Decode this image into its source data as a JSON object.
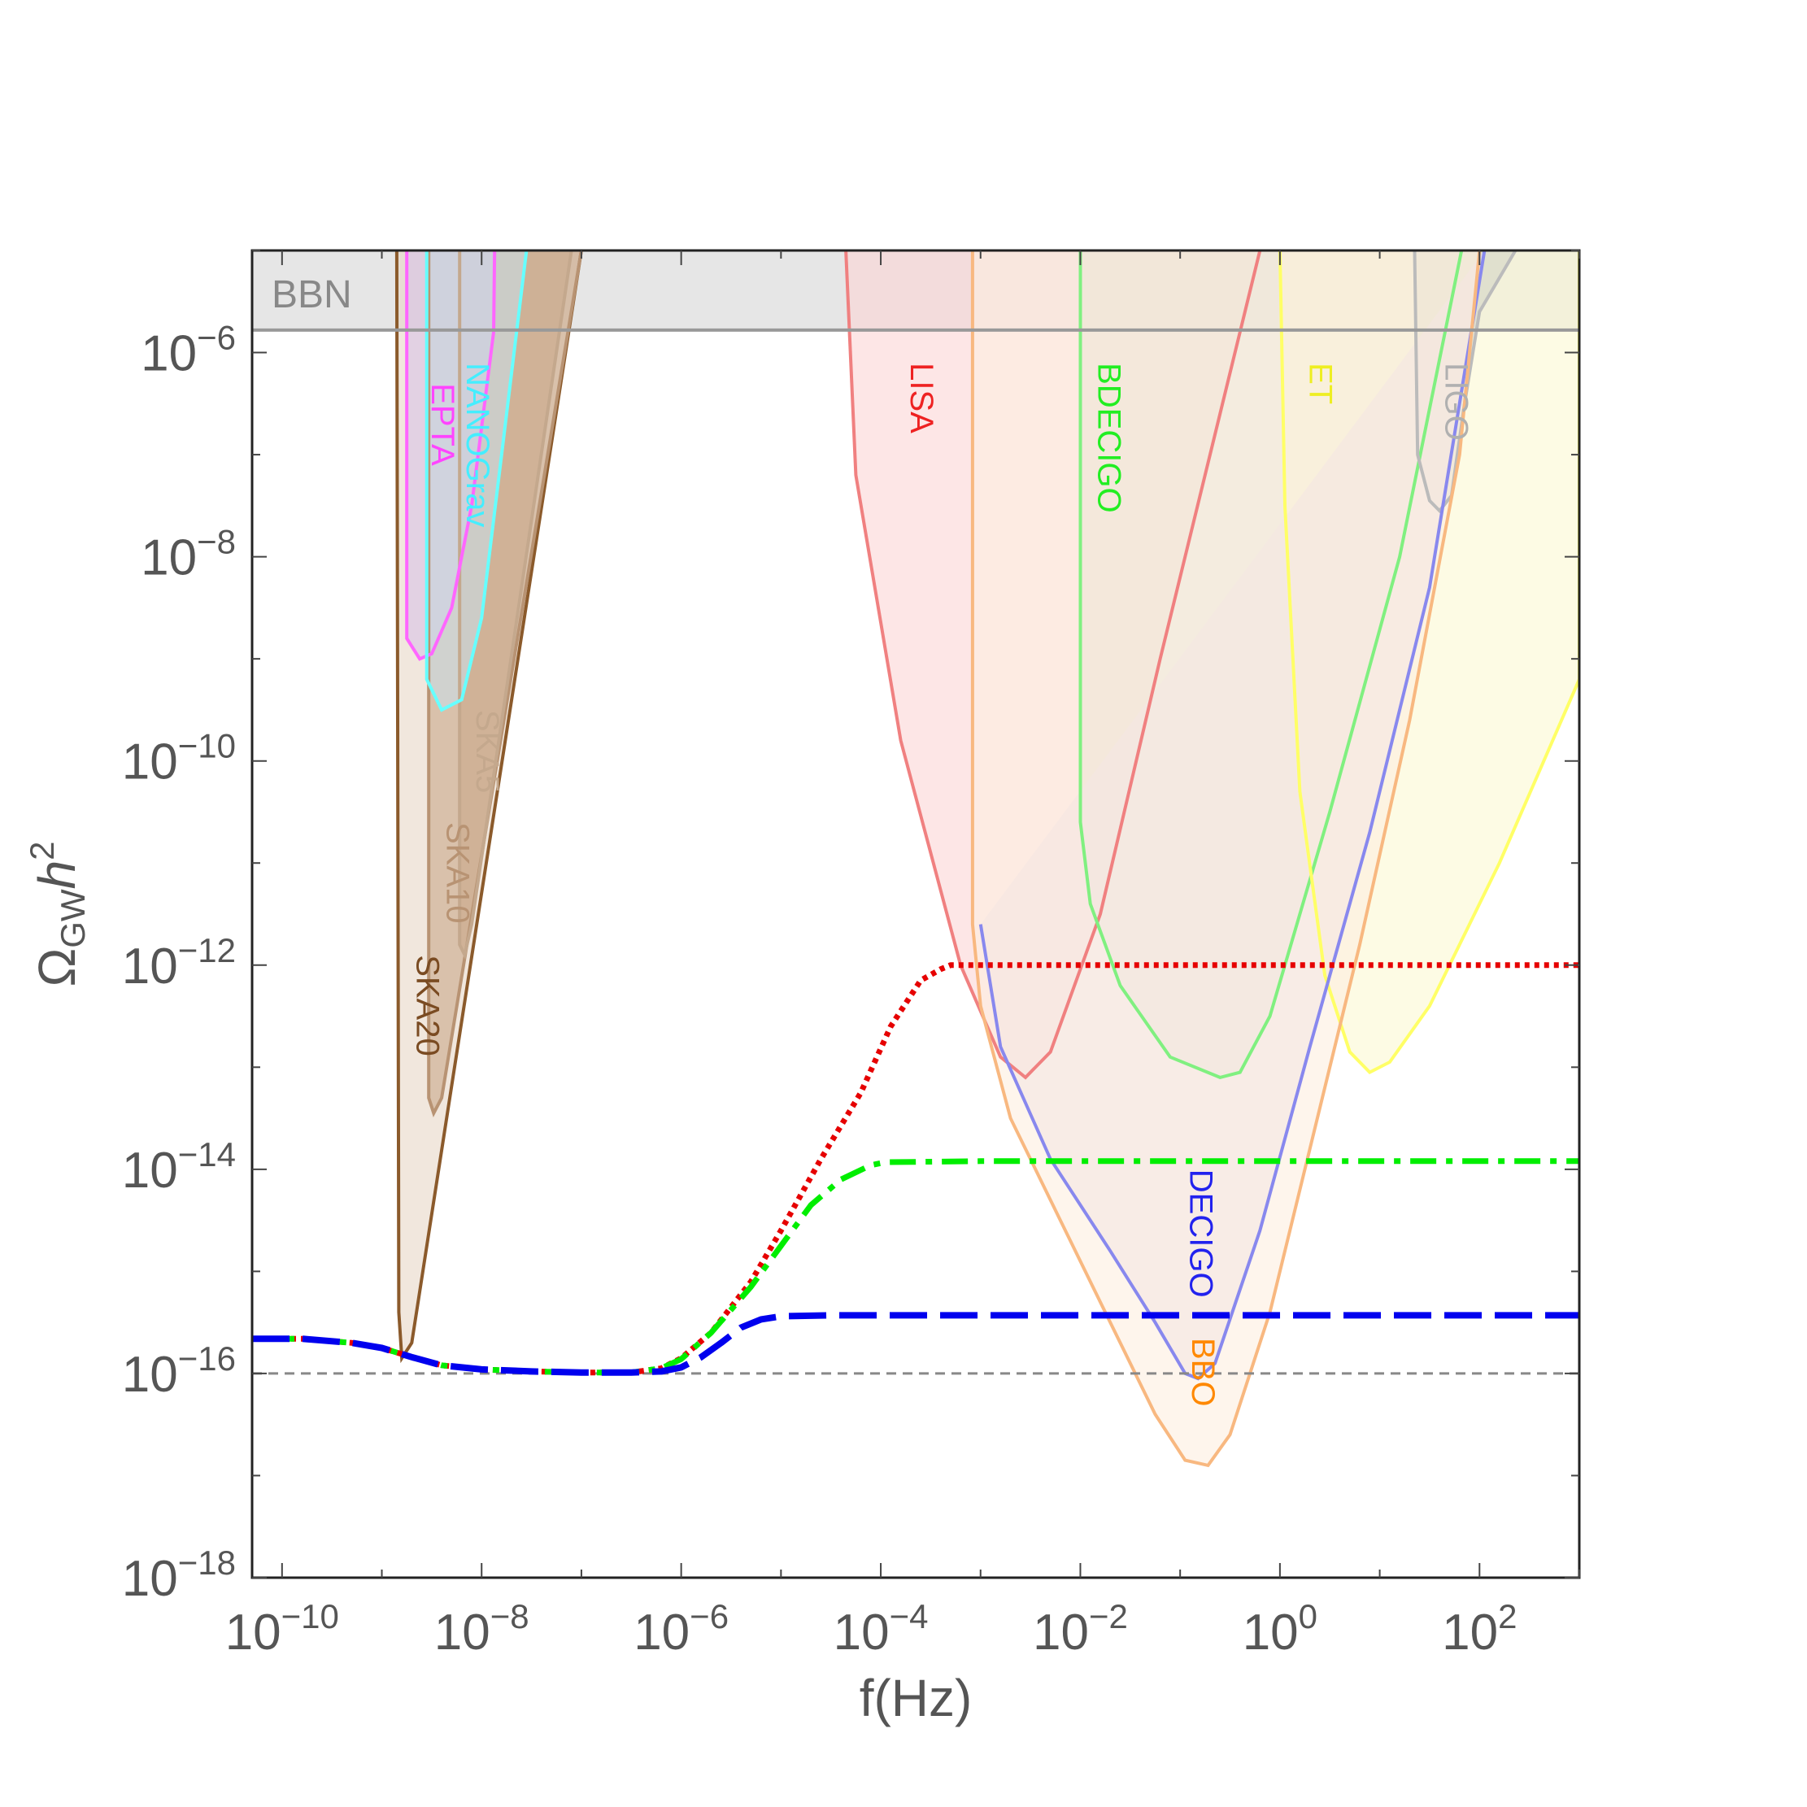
{
  "chart_data": {
    "type": "line",
    "title": "",
    "xlabel": "f(Hz)",
    "ylabel_main": "Ω",
    "ylabel_sub": "GW",
    "ylabel_h": "h",
    "ylabel_exp": "2",
    "x_scale": "log",
    "y_scale": "log",
    "xlim_log10": [
      -10.3,
      3.0
    ],
    "ylim_log10": [
      -18.0,
      -5.0
    ],
    "grid": false,
    "legend": "none",
    "x_ticks": [
      {
        "exp": -10,
        "base": "10",
        "sup": "−10"
      },
      {
        "exp": -8,
        "base": "10",
        "sup": "−8"
      },
      {
        "exp": -6,
        "base": "10",
        "sup": "−6"
      },
      {
        "exp": -4,
        "base": "10",
        "sup": "−4"
      },
      {
        "exp": -2,
        "base": "10",
        "sup": "−2"
      },
      {
        "exp": 0,
        "base": "10",
        "sup": "0"
      },
      {
        "exp": 2,
        "base": "10",
        "sup": "2"
      }
    ],
    "y_ticks": [
      {
        "exp": -18,
        "base": "10",
        "sup": "−18"
      },
      {
        "exp": -16,
        "base": "10",
        "sup": "−16"
      },
      {
        "exp": -14,
        "base": "10",
        "sup": "−14"
      },
      {
        "exp": -12,
        "base": "10",
        "sup": "−12"
      },
      {
        "exp": -10,
        "base": "10",
        "sup": "−10"
      },
      {
        "exp": -8,
        "base": "10",
        "sup": "−8"
      },
      {
        "exp": -6,
        "base": "10",
        "sup": "−6"
      }
    ],
    "bbn": {
      "label": "BBN",
      "y_log10": -5.78,
      "fill": "#e6e6e6",
      "line": "#999999"
    },
    "regions": [
      {
        "label": "SKA20",
        "color": "#8b5a2b",
        "fill": "#e8d7c6",
        "label_color": "#7a4b22",
        "label_pos": [
          -8.65,
          -11.9
        ],
        "poly": [
          [
            -8.85,
            -5.0
          ],
          [
            -8.83,
            -15.4
          ],
          [
            -8.8,
            -15.85
          ],
          [
            -8.7,
            -15.7
          ],
          [
            -7.0,
            -5.0
          ]
        ]
      },
      {
        "label": "SKA10",
        "color": "#b89373",
        "fill": "#c9a88a",
        "label_color": "#b89373",
        "label_pos": [
          -8.35,
          -10.6
        ],
        "poly": [
          [
            -8.53,
            -5.0
          ],
          [
            -8.53,
            -13.3
          ],
          [
            -8.48,
            -13.45
          ],
          [
            -8.4,
            -13.3
          ],
          [
            -7.0,
            -5.0
          ]
        ]
      },
      {
        "label": "SKA5",
        "color": "#c4a88d",
        "fill": "#c9a88a",
        "label_color": "#c4a88d",
        "label_pos": [
          -8.05,
          -9.5
        ],
        "poly": [
          [
            -8.22,
            -5.0
          ],
          [
            -8.22,
            -11.8
          ],
          [
            -8.17,
            -11.9
          ],
          [
            -8.1,
            -11.6
          ],
          [
            -7.1,
            -5.0
          ]
        ]
      },
      {
        "label": "EPTA",
        "color": "#ff66ff",
        "fill": "#d9c3e8",
        "label_color": "#ff44ff",
        "label_pos": [
          -8.5,
          -6.3
        ],
        "poly": [
          [
            -8.75,
            -5.0
          ],
          [
            -8.75,
            -8.8
          ],
          [
            -8.62,
            -9.0
          ],
          [
            -8.5,
            -8.95
          ],
          [
            -8.3,
            -8.5
          ],
          [
            -8.1,
            -7.5
          ],
          [
            -7.88,
            -5.8
          ],
          [
            -7.87,
            -5.0
          ]
        ]
      },
      {
        "label": "NANOGrav",
        "color": "#66ffff",
        "fill": "#c9dde8",
        "label_color": "#44eeff",
        "label_pos": [
          -8.15,
          -6.1
        ],
        "poly": [
          [
            -8.55,
            -5.0
          ],
          [
            -8.55,
            -9.2
          ],
          [
            -8.4,
            -9.5
          ],
          [
            -8.2,
            -9.4
          ],
          [
            -8.0,
            -8.6
          ],
          [
            -7.8,
            -7.0
          ],
          [
            -7.55,
            -5.0
          ]
        ]
      },
      {
        "label": "LISA",
        "color": "#f08080",
        "fill": "#fbd5d5",
        "label_color": "#ee2222",
        "label_pos": [
          -3.7,
          -6.1
        ],
        "poly": [
          [
            -4.35,
            -5.0
          ],
          [
            -4.25,
            -7.2
          ],
          [
            -3.8,
            -9.8
          ],
          [
            -3.2,
            -12.0
          ],
          [
            -2.8,
            -12.9
          ],
          [
            -2.55,
            -13.1
          ],
          [
            -2.3,
            -12.85
          ],
          [
            -1.8,
            -11.5
          ],
          [
            -1.2,
            -9.0
          ],
          [
            -0.2,
            -5.0
          ]
        ]
      },
      {
        "label": "BDECIGO",
        "color": "#80f080",
        "fill": "#d5dac8",
        "label_color": "#22ee22",
        "label_pos": [
          -1.82,
          -6.1
        ],
        "poly": [
          [
            -2.0,
            -5.0
          ],
          [
            -2.0,
            -10.6
          ],
          [
            -1.9,
            -11.4
          ],
          [
            -1.6,
            -12.2
          ],
          [
            -1.1,
            -12.9
          ],
          [
            -0.6,
            -13.1
          ],
          [
            -0.4,
            -13.05
          ],
          [
            -0.1,
            -12.5
          ],
          [
            0.5,
            -10.5
          ],
          [
            1.2,
            -8.0
          ],
          [
            1.82,
            -5.0
          ]
        ]
      },
      {
        "label": "ET",
        "color": "#ffff66",
        "fill": "#fbf8d2",
        "label_color": "#eeee22",
        "label_pos": [
          0.3,
          -6.1
        ],
        "poly": [
          [
            0.0,
            -5.0
          ],
          [
            0.05,
            -7.5
          ],
          [
            0.2,
            -10.3
          ],
          [
            0.45,
            -12.1
          ],
          [
            0.7,
            -12.85
          ],
          [
            0.9,
            -13.05
          ],
          [
            1.1,
            -12.95
          ],
          [
            1.5,
            -12.4
          ],
          [
            2.2,
            -11.0
          ],
          [
            3.0,
            -9.2
          ],
          [
            3.0,
            -5.0
          ]
        ]
      },
      {
        "label": "LIGO",
        "color": "#bbbbbb",
        "fill": "#d4d6c6",
        "label_color": "#b0b0b0",
        "label_pos": [
          1.66,
          -6.1
        ],
        "poly": [
          [
            1.35,
            -5.0
          ],
          [
            1.38,
            -7.0
          ],
          [
            1.5,
            -7.45
          ],
          [
            1.6,
            -7.55
          ],
          [
            1.72,
            -7.4
          ],
          [
            1.85,
            -6.5
          ],
          [
            2.0,
            -5.6
          ],
          [
            2.36,
            -5.0
          ]
        ]
      },
      {
        "label": "DECIGO",
        "color": "#8888ee",
        "fill": "#e8dbe8",
        "label_color": "#2222ee",
        "label_pos": [
          -0.9,
          -14.0
        ],
        "poly": [
          [
            -3.0,
            -11.6
          ],
          [
            -2.8,
            -12.8
          ],
          [
            -2.3,
            -13.9
          ],
          [
            -1.7,
            -14.8
          ],
          [
            -1.25,
            -15.5
          ],
          [
            -0.95,
            -16.0
          ],
          [
            -0.82,
            -16.05
          ],
          [
            -0.65,
            -15.9
          ],
          [
            -0.2,
            -14.6
          ],
          [
            0.3,
            -12.8
          ],
          [
            0.9,
            -10.7
          ],
          [
            1.5,
            -8.3
          ],
          [
            2.05,
            -5.0
          ]
        ]
      },
      {
        "label": "BBO",
        "color": "#f8b880",
        "fill": "#fdeee0",
        "label_color": "#ff8800",
        "label_pos": [
          -0.88,
          -15.65
        ],
        "poly": [
          [
            -3.08,
            -5.0
          ],
          [
            -3.08,
            -11.6
          ],
          [
            -3.0,
            -12.4
          ],
          [
            -2.7,
            -13.5
          ],
          [
            -2.2,
            -14.5
          ],
          [
            -1.7,
            -15.5
          ],
          [
            -1.25,
            -16.4
          ],
          [
            -0.95,
            -16.85
          ],
          [
            -0.72,
            -16.9
          ],
          [
            -0.5,
            -16.6
          ],
          [
            -0.1,
            -15.4
          ],
          [
            0.3,
            -13.8
          ],
          [
            0.8,
            -11.8
          ],
          [
            1.3,
            -9.6
          ],
          [
            1.8,
            -7.0
          ],
          [
            2.0,
            -5.0
          ]
        ]
      }
    ],
    "reference_line": {
      "y_log10": -16.0,
      "color": "#888888"
    },
    "series": [
      {
        "style": "dotted",
        "color": "#e60000",
        "points": [
          [
            -10.3,
            -15.66
          ],
          [
            -9.8,
            -15.66
          ],
          [
            -9.3,
            -15.7
          ],
          [
            -9.0,
            -15.75
          ],
          [
            -8.7,
            -15.84
          ],
          [
            -8.4,
            -15.92
          ],
          [
            -8.0,
            -15.96
          ],
          [
            -7.5,
            -15.98
          ],
          [
            -7.0,
            -15.99
          ],
          [
            -6.5,
            -15.99
          ],
          [
            -6.2,
            -15.95
          ],
          [
            -6.0,
            -15.85
          ],
          [
            -5.7,
            -15.6
          ],
          [
            -5.3,
            -15.1
          ],
          [
            -5.0,
            -14.6
          ],
          [
            -4.6,
            -13.9
          ],
          [
            -4.2,
            -13.25
          ],
          [
            -3.9,
            -12.6
          ],
          [
            -3.6,
            -12.15
          ],
          [
            -3.4,
            -12.04
          ],
          [
            -3.3,
            -12.0
          ],
          [
            -2.0,
            -12.0
          ],
          [
            0.0,
            -12.0
          ],
          [
            3.0,
            -12.0
          ]
        ]
      },
      {
        "style": "dashdot",
        "color": "#00ee00",
        "points": [
          [
            -10.3,
            -15.66
          ],
          [
            -9.8,
            -15.66
          ],
          [
            -9.3,
            -15.7
          ],
          [
            -9.0,
            -15.75
          ],
          [
            -8.7,
            -15.84
          ],
          [
            -8.4,
            -15.92
          ],
          [
            -8.0,
            -15.96
          ],
          [
            -7.5,
            -15.98
          ],
          [
            -7.0,
            -15.99
          ],
          [
            -6.5,
            -15.99
          ],
          [
            -6.2,
            -15.95
          ],
          [
            -6.0,
            -15.86
          ],
          [
            -5.7,
            -15.6
          ],
          [
            -5.3,
            -15.15
          ],
          [
            -5.0,
            -14.75
          ],
          [
            -4.7,
            -14.35
          ],
          [
            -4.4,
            -14.1
          ],
          [
            -4.1,
            -13.96
          ],
          [
            -3.95,
            -13.93
          ],
          [
            -3.0,
            -13.92
          ],
          [
            0.0,
            -13.92
          ],
          [
            3.0,
            -13.92
          ]
        ]
      },
      {
        "style": "dashed",
        "color": "#0000ee",
        "points": [
          [
            -10.3,
            -15.66
          ],
          [
            -9.8,
            -15.66
          ],
          [
            -9.3,
            -15.7
          ],
          [
            -9.0,
            -15.75
          ],
          [
            -8.7,
            -15.84
          ],
          [
            -8.4,
            -15.92
          ],
          [
            -8.0,
            -15.96
          ],
          [
            -7.5,
            -15.98
          ],
          [
            -7.0,
            -15.99
          ],
          [
            -6.5,
            -15.99
          ],
          [
            -6.2,
            -15.98
          ],
          [
            -6.0,
            -15.94
          ],
          [
            -5.8,
            -15.84
          ],
          [
            -5.6,
            -15.7
          ],
          [
            -5.4,
            -15.55
          ],
          [
            -5.2,
            -15.47
          ],
          [
            -5.0,
            -15.44
          ],
          [
            -4.5,
            -15.43
          ],
          [
            0.0,
            -15.43
          ],
          [
            3.0,
            -15.43
          ]
        ]
      }
    ]
  }
}
